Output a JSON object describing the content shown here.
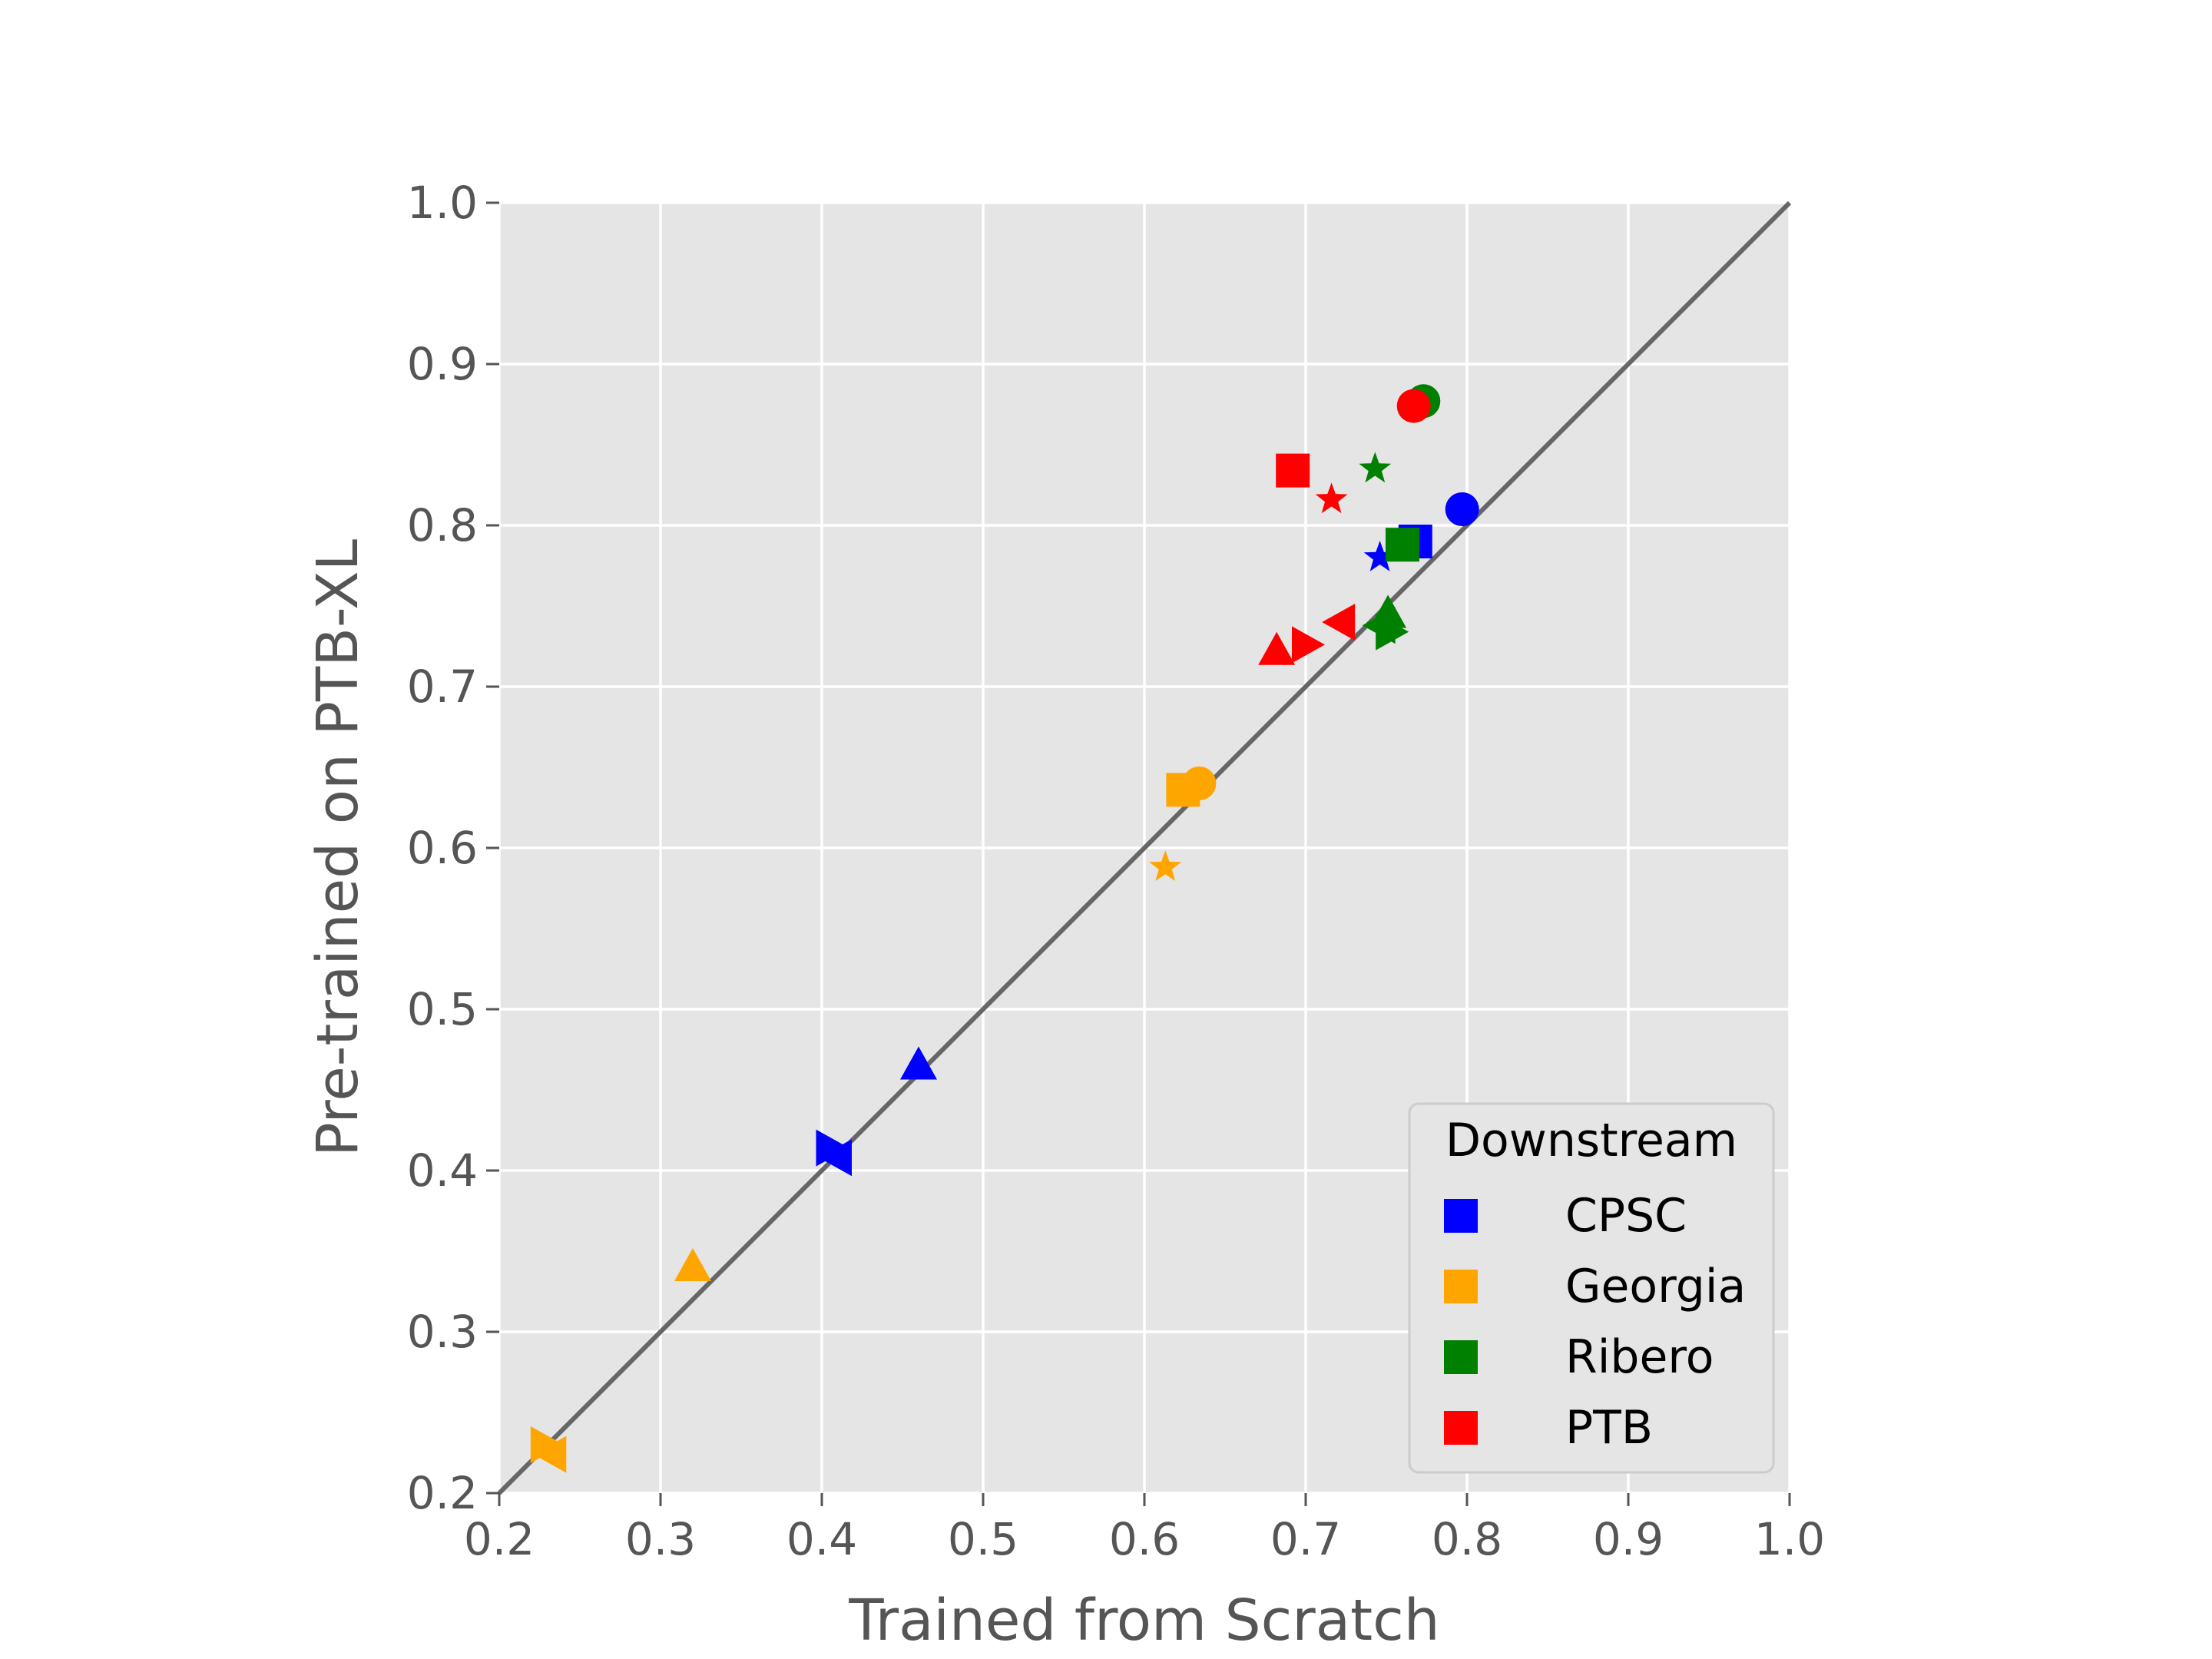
{
  "chart_data": {
    "type": "scatter",
    "title": "",
    "xlabel": "Trained from Scratch",
    "ylabel": "Pre-trained on PTB-XL",
    "xlim": [
      0.2,
      1.0
    ],
    "ylim": [
      0.2,
      1.0
    ],
    "xticks": [
      "0.2",
      "0.3",
      "0.4",
      "0.5",
      "0.6",
      "0.7",
      "0.8",
      "0.9",
      "1.0"
    ],
    "yticks": [
      "0.2",
      "0.3",
      "0.4",
      "0.5",
      "0.6",
      "0.7",
      "0.8",
      "0.9",
      "1.0"
    ],
    "grid": true,
    "background": "#e5e5e5",
    "reference_line": {
      "from": [
        0.2,
        0.2
      ],
      "to": [
        1.0,
        1.0
      ],
      "color": "#666666"
    },
    "legend": {
      "title": "Downstream",
      "position": "lower-right",
      "entries": [
        {
          "label": "CPSC",
          "color": "#0000ff"
        },
        {
          "label": "Georgia",
          "color": "#ffa500"
        },
        {
          "label": "Ribero",
          "color": "#008000"
        },
        {
          "label": "PTB",
          "color": "#ff0000"
        }
      ]
    },
    "series": [
      {
        "name": "CPSC",
        "color": "#0000ff",
        "points": [
          {
            "x": 0.797,
            "y": 0.81,
            "marker": "circle"
          },
          {
            "x": 0.768,
            "y": 0.79,
            "marker": "square"
          },
          {
            "x": 0.746,
            "y": 0.78,
            "marker": "star"
          },
          {
            "x": 0.46,
            "y": 0.465,
            "marker": "triangle-up"
          },
          {
            "x": 0.405,
            "y": 0.414,
            "marker": "triangle-right"
          },
          {
            "x": 0.41,
            "y": 0.408,
            "marker": "triangle-left"
          }
        ]
      },
      {
        "name": "Georgia",
        "color": "#ffa500",
        "points": [
          {
            "x": 0.634,
            "y": 0.64,
            "marker": "circle"
          },
          {
            "x": 0.624,
            "y": 0.636,
            "marker": "square"
          },
          {
            "x": 0.613,
            "y": 0.588,
            "marker": "star"
          },
          {
            "x": 0.32,
            "y": 0.34,
            "marker": "triangle-up"
          },
          {
            "x": 0.228,
            "y": 0.23,
            "marker": "triangle-right"
          },
          {
            "x": 0.233,
            "y": 0.224,
            "marker": "triangle-left"
          }
        ]
      },
      {
        "name": "Ribero",
        "color": "#008000",
        "points": [
          {
            "x": 0.773,
            "y": 0.877,
            "marker": "circle"
          },
          {
            "x": 0.76,
            "y": 0.788,
            "marker": "square"
          },
          {
            "x": 0.743,
            "y": 0.835,
            "marker": "star"
          },
          {
            "x": 0.751,
            "y": 0.745,
            "marker": "triangle-up"
          },
          {
            "x": 0.747,
            "y": 0.738,
            "marker": "triangle-left"
          },
          {
            "x": 0.752,
            "y": 0.734,
            "marker": "triangle-right"
          }
        ]
      },
      {
        "name": "PTB",
        "color": "#ff0000",
        "points": [
          {
            "x": 0.767,
            "y": 0.874,
            "marker": "circle"
          },
          {
            "x": 0.692,
            "y": 0.834,
            "marker": "square"
          },
          {
            "x": 0.716,
            "y": 0.816,
            "marker": "star"
          },
          {
            "x": 0.682,
            "y": 0.722,
            "marker": "triangle-up"
          },
          {
            "x": 0.7,
            "y": 0.726,
            "marker": "triangle-right"
          },
          {
            "x": 0.722,
            "y": 0.74,
            "marker": "triangle-left"
          }
        ]
      }
    ]
  }
}
